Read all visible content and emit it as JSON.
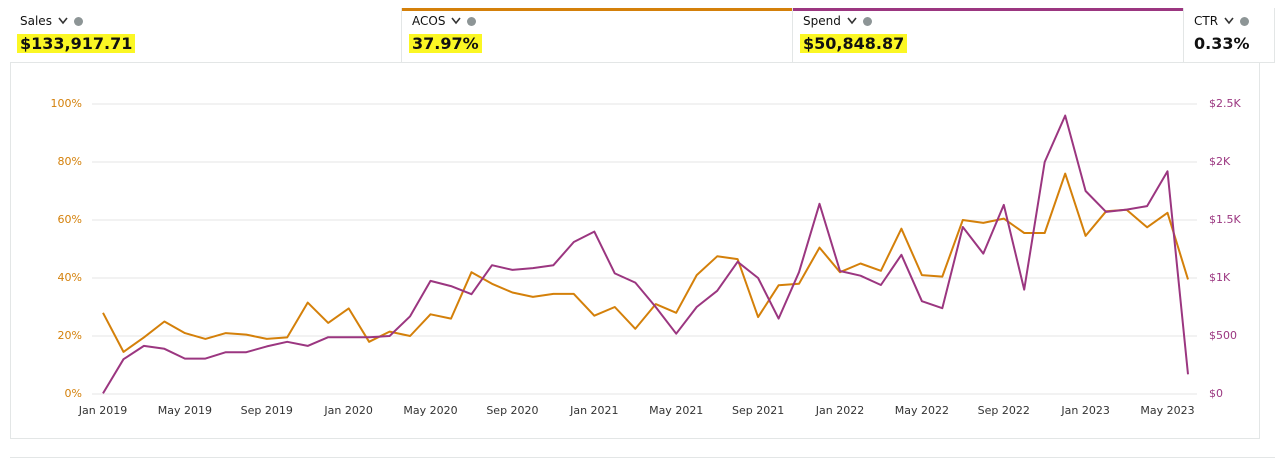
{
  "metrics": [
    {
      "label": "Sales",
      "value": "$133,917.71"
    },
    {
      "label": "ACOS",
      "value": "37.97%"
    },
    {
      "label": "Spend",
      "value": "$50,848.87"
    },
    {
      "label": "CTR",
      "value": "0.33%"
    }
  ],
  "chart_data": {
    "type": "line",
    "categories": [
      "Jan 2019",
      null,
      null,
      null,
      "May 2019",
      null,
      null,
      null,
      "Sep 2019",
      null,
      null,
      null,
      "Jan 2020",
      null,
      null,
      null,
      "May 2020",
      null,
      null,
      null,
      "Sep 2020",
      null,
      null,
      null,
      "Jan 2021",
      null,
      null,
      null,
      "May 2021",
      null,
      null,
      null,
      "Sep 2021",
      null,
      null,
      null,
      "Jan 2022",
      null,
      null,
      null,
      "May 2022",
      null,
      null,
      null,
      "Sep 2022",
      null,
      null,
      null,
      "Jan 2023",
      null,
      null,
      null,
      "May 2023",
      null
    ],
    "series": [
      {
        "color": "#d4800a",
        "values": [
          28,
          14.5,
          19.5,
          25,
          21,
          19,
          21,
          20.5,
          19,
          19.5,
          31.5,
          24.5,
          29.5,
          18,
          21.5,
          20,
          27.5,
          26,
          42,
          38,
          35,
          33.5,
          34.5,
          34.5,
          27,
          30,
          22.5,
          31,
          28,
          41,
          47.5,
          46.5,
          26.5,
          37.5,
          38,
          50.5,
          42,
          45,
          42.5,
          57,
          41,
          40.5,
          60,
          59,
          60.5,
          55.5,
          55.5,
          76,
          54.5,
          63,
          63.5,
          57.5,
          62.5,
          39.5
        ]
      },
      {
        "color": "#9b3680",
        "axis": "y2",
        "values": [
          5,
          300,
          415,
          390,
          305,
          305,
          360,
          360,
          410,
          450,
          415,
          490,
          490,
          490,
          500,
          670,
          975,
          930,
          860,
          1110,
          1070,
          1085,
          1110,
          1310,
          1400,
          1040,
          960,
          750,
          520,
          750,
          890,
          1140,
          1000,
          650,
          1050,
          1640,
          1060,
          1020,
          940,
          1200,
          800,
          740,
          1440,
          1210,
          1630,
          900,
          2000,
          2400,
          1750,
          1570,
          1590,
          1620,
          1920,
          170
        ]
      }
    ],
    "ylim": [
      0,
      100
    ],
    "yticks": [
      {
        "value": 0,
        "label": "0%"
      },
      {
        "value": 20,
        "label": "20%"
      },
      {
        "value": 40,
        "label": "40%"
      },
      {
        "value": 60,
        "label": "60%"
      },
      {
        "value": 80,
        "label": "80%"
      },
      {
        "value": 100,
        "label": "100%"
      }
    ],
    "y2lim": [
      0,
      2500
    ],
    "y2ticks": [
      {
        "value": 0,
        "label": "$0"
      },
      {
        "value": 500,
        "label": "$500"
      },
      {
        "value": 1000,
        "label": "$1K"
      },
      {
        "value": 1500,
        "label": "$1.5K"
      },
      {
        "value": 2000,
        "label": "$2K"
      },
      {
        "value": 2500,
        "label": "$2.5K"
      }
    ],
    "grid": true
  }
}
